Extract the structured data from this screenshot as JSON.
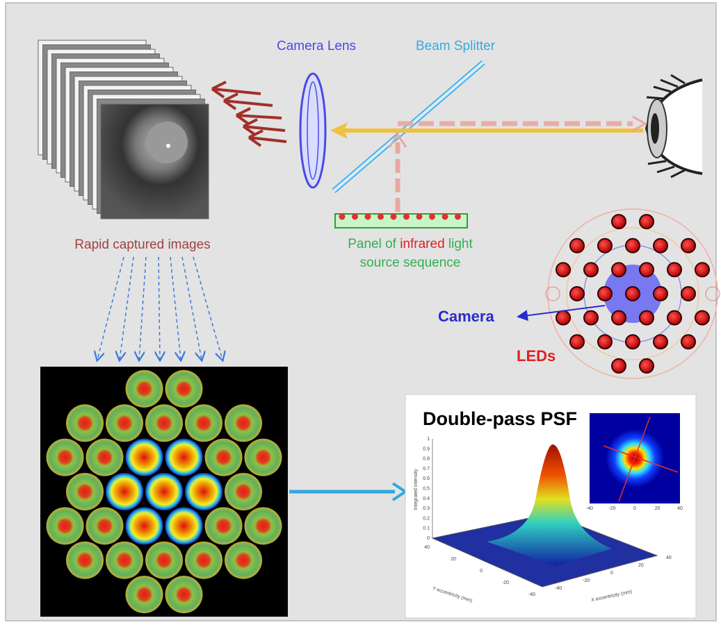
{
  "labels": {
    "camera_lens": "Camera Lens",
    "beam_splitter": "Beam Splitter",
    "rapid_images": "Rapid captured images",
    "panel": {
      "line1_a": "Panel of",
      "line1_b": "infrared",
      "line1_c": "light",
      "line2": "source sequence"
    },
    "camera": "Camera",
    "leds": "LEDs"
  },
  "psf": {
    "title": "Double-pass PSF",
    "z_label": "Integrated intensity",
    "y_label": "Y eccentricity (mm)",
    "x_label": "X eccentricity (mm)",
    "z_ticks": [
      "0",
      "0.1",
      "0.2",
      "0.3",
      "0.4",
      "0.5",
      "0.6",
      "0.7",
      "0.8",
      "0.9",
      "1"
    ],
    "xy_ticks": [
      "40",
      "20",
      "0",
      "-20",
      "-40"
    ],
    "inset_ticks": [
      "-40",
      "-20",
      "0",
      "20",
      "40"
    ]
  }
}
